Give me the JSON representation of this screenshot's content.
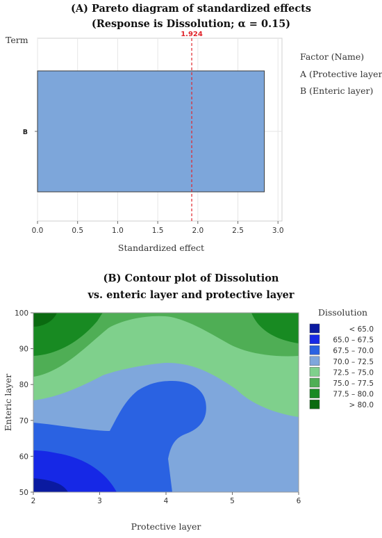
{
  "chart_data": [
    {
      "type": "bar",
      "orientation": "horizontal",
      "title": "(A) Pareto diagram of standardized effects",
      "subtitle": "(Response is Dissolution; α = 0.15)",
      "xlabel": "Standardized effect",
      "ylabel": "Term",
      "categories": [
        "B"
      ],
      "values": [
        2.83
      ],
      "xlim": [
        0,
        3.05
      ],
      "xticks": [
        "0.0",
        "0.5",
        "1.0",
        "1.5",
        "2.0",
        "2.5",
        "3.0"
      ],
      "reference_line": {
        "value": 1.924,
        "label": "1.924",
        "color": "#e0242b"
      },
      "bar_color": "#7da6da",
      "grid": true,
      "legend": {
        "position": "right",
        "title": "Factor (Name)",
        "entries": [
          "A (Protective layer)",
          "B (Enteric layer)"
        ]
      }
    },
    {
      "type": "heatmap",
      "subtype": "contour",
      "title": "(B) Contour plot of Dissolution",
      "subtitle": "vs. enteric layer and protective layer",
      "xlabel": "Protective layer",
      "ylabel": "Enteric layer",
      "xlim": [
        2,
        6
      ],
      "ylim": [
        50,
        100
      ],
      "xticks": [
        "2",
        "3",
        "4",
        "5",
        "6"
      ],
      "yticks": [
        "50",
        "60",
        "70",
        "80",
        "90",
        "100"
      ],
      "legend": {
        "position": "right",
        "title": "Dissolution",
        "levels": [
          {
            "label": "< 65.0",
            "color": "#0a1aa0"
          },
          {
            "label": "65.0 – 67.5",
            "color": "#1628e6"
          },
          {
            "label": "67.5 – 70.0",
            "color": "#2a62e2"
          },
          {
            "label": "70.0 – 72.5",
            "color": "#7fa7dc"
          },
          {
            "label": "72.5 – 75.0",
            "color": "#7fd08c"
          },
          {
            "label": "75.0 – 77.5",
            "color": "#4fae55"
          },
          {
            "label": "77.5 – 80.0",
            "color": "#188a22"
          },
          {
            "label": "> 80.0",
            "color": "#0a6a10"
          }
        ]
      }
    }
  ]
}
